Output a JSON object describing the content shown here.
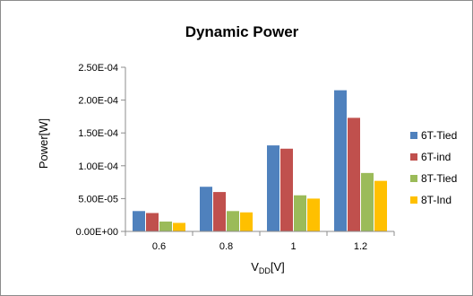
{
  "chart_data": {
    "type": "bar",
    "title": "Dynamic Power",
    "xlabel_main": "V",
    "xlabel_sub": "DD",
    "xlabel_unit": "[V]",
    "ylabel": "Power[W]",
    "categories": [
      "0.6",
      "0.8",
      "1",
      "1.2"
    ],
    "ylim": [
      0,
      0.00025
    ],
    "yticks": [
      0,
      5e-05,
      0.0001,
      0.00015,
      0.0002,
      0.00025
    ],
    "ytick_labels": [
      "0.00E+00",
      "5.00E-05",
      "1.00E-04",
      "1.50E-04",
      "2.00E-04",
      "2.50E-04"
    ],
    "grid": false,
    "legend_position": "right",
    "series": [
      {
        "name": "6T-Tied",
        "color": "#4F81BD",
        "values": [
          3.1e-05,
          6.8e-05,
          0.000131,
          0.000215
        ]
      },
      {
        "name": "6T-ind",
        "color": "#C0504D",
        "values": [
          2.8e-05,
          6e-05,
          0.000126,
          0.000173
        ]
      },
      {
        "name": "8T-Tied",
        "color": "#9BBB59",
        "values": [
          1.5e-05,
          3.1e-05,
          5.5e-05,
          8.9e-05
        ]
      },
      {
        "name": "8T-Ind",
        "color": "#FFC000",
        "values": [
          1.3e-05,
          2.9e-05,
          5e-05,
          7.7e-05
        ]
      }
    ]
  }
}
